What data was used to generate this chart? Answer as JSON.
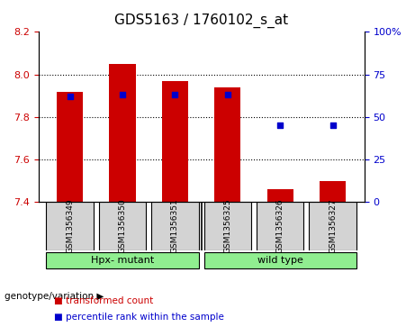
{
  "title": "GDS5163 / 1760102_s_at",
  "samples": [
    "GSM1356349",
    "GSM1356350",
    "GSM1356351",
    "GSM1356325",
    "GSM1356326",
    "GSM1356327"
  ],
  "transformed_count": [
    7.92,
    8.05,
    7.97,
    7.94,
    7.46,
    7.5
  ],
  "percentile_rank": [
    62,
    63,
    63,
    63,
    45,
    45
  ],
  "ylim_left": [
    7.4,
    8.2
  ],
  "ylim_right": [
    0,
    100
  ],
  "yticks_left": [
    7.4,
    7.6,
    7.8,
    8.0,
    8.2
  ],
  "yticks_right": [
    0,
    25,
    50,
    75,
    100
  ],
  "groups": [
    {
      "label": "Hpx- mutant",
      "indices": [
        0,
        1,
        2
      ],
      "color": "#90EE90"
    },
    {
      "label": "wild type",
      "indices": [
        3,
        4,
        5
      ],
      "color": "#90EE90"
    }
  ],
  "bar_color": "#CC0000",
  "dot_color": "#0000CC",
  "bar_bottom": 7.4,
  "bar_width": 0.5,
  "grid_color": "#000000",
  "bg_color": "#FFFFFF",
  "plot_bg_color": "#FFFFFF",
  "left_tick_color": "#CC0000",
  "right_tick_color": "#0000CC",
  "label_fontsize": 9,
  "title_fontsize": 11,
  "genotype_label": "genotype/variation",
  "legend_items": [
    {
      "label": "transformed count",
      "color": "#CC0000"
    },
    {
      "label": "percentile rank within the sample",
      "color": "#0000CC"
    }
  ]
}
